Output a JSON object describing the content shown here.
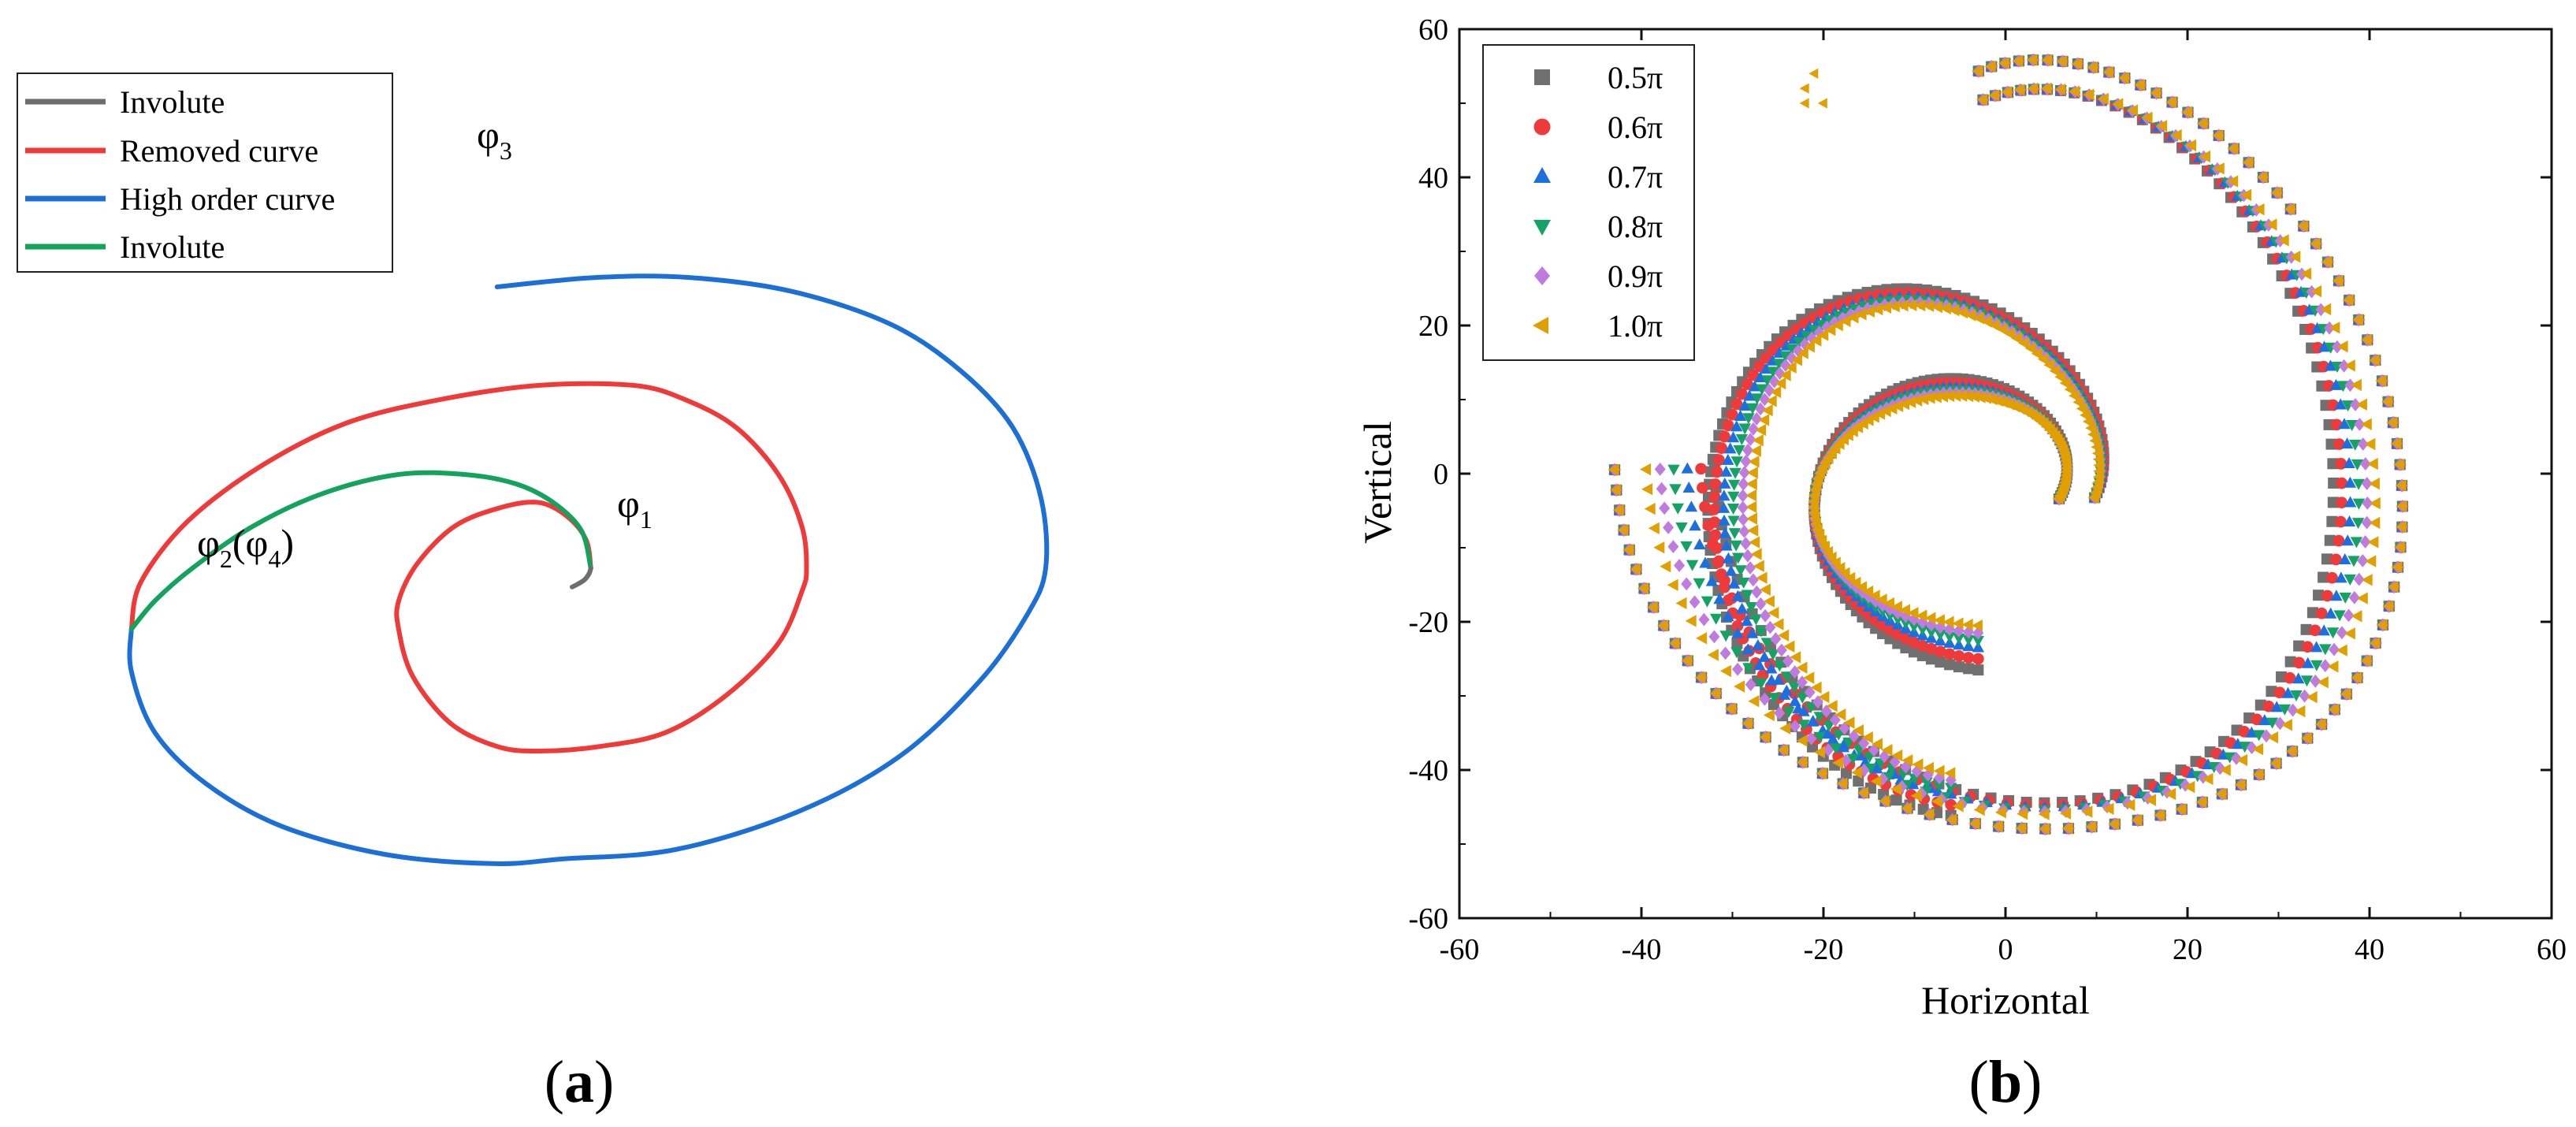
{
  "chart_data": [
    {
      "panel": "a",
      "type": "line",
      "panel_label_open": "(",
      "panel_label_letter": "a",
      "panel_label_close": ")",
      "legend": {
        "placement": "top-left",
        "entries": [
          {
            "name": "Involute",
            "color": "#6e6e6e"
          },
          {
            "name": "Removed curve",
            "color": "#f03a3a"
          },
          {
            "name": "High order curve",
            "color": "#1c6fd6"
          },
          {
            "name": "Involute",
            "color": "#14a35c"
          }
        ]
      },
      "annotations": [
        {
          "symbol": "φ",
          "subscript": "3",
          "suffix": ""
        },
        {
          "symbol": "φ",
          "subscript": "1",
          "suffix": ""
        },
        {
          "symbol": "φ",
          "subscript": "2",
          "suffix": "(φ",
          "subscript2": "4",
          "suffix2": ")"
        }
      ],
      "curves": [
        {
          "name": "Involute",
          "color": "#6e6e6e",
          "segment": "start",
          "x": [
            0,
            1,
            3,
            4
          ],
          "y": [
            -4,
            -3,
            -2,
            0
          ]
        },
        {
          "name": "Removed curve",
          "color": "#f03a3a",
          "segment": "inner and outer spiral",
          "x": [
            4,
            -7,
            -37,
            -7,
            50,
            -7,
            -94
          ],
          "y": [
            0,
            14,
            -13,
            -39,
            0,
            39,
            -13
          ]
        },
        {
          "name": "High order curve",
          "color": "#1c6fd6",
          "segment": "outer wrap",
          "x": [
            -94,
            -2,
            101,
            -16
          ],
          "y": [
            -13,
            -62,
            0,
            60
          ]
        },
        {
          "name": "Involute",
          "color": "#14a35c",
          "segment": "inner bridge",
          "x": [
            4,
            -43,
            -94
          ],
          "y": [
            0,
            20,
            -13
          ]
        }
      ]
    },
    {
      "panel": "b",
      "type": "scatter",
      "panel_label_open": "(",
      "panel_label_letter": "b",
      "panel_label_close": ")",
      "xlabel": "Horizontal",
      "ylabel": "Vertical",
      "xlim": [
        -60,
        60
      ],
      "ylim": [
        -60,
        60
      ],
      "xticks": [
        -60,
        -40,
        -20,
        0,
        20,
        40,
        60
      ],
      "yticks": [
        -60,
        -40,
        -20,
        0,
        20,
        40,
        60
      ],
      "grid": false,
      "legend": {
        "placement": "top-left",
        "entries": [
          {
            "name": "0.5π",
            "color": "#707070",
            "marker": "square"
          },
          {
            "name": "0.6π",
            "color": "#ee3a3a",
            "marker": "circle"
          },
          {
            "name": "0.7π",
            "color": "#1d6fe0",
            "marker": "triangle-up"
          },
          {
            "name": "0.8π",
            "color": "#15a365",
            "marker": "triangle-down"
          },
          {
            "name": "0.9π",
            "color": "#c07be0",
            "marker": "diamond"
          },
          {
            "name": "1.0π",
            "color": "#e0a000",
            "marker": "triangle-left"
          }
        ]
      },
      "series": [
        {
          "name": "0.5π",
          "inner_ry": 25.5,
          "inner_rx": 35.5
        },
        {
          "name": "0.6π",
          "inner_ry": 24.0,
          "inner_rx": 34.5
        },
        {
          "name": "0.7π",
          "inner_ry": 22.5,
          "inner_rx": 33.0
        },
        {
          "name": "0.8π",
          "inner_ry": 21.5,
          "inner_rx": 31.5
        },
        {
          "name": "0.9π",
          "inner_ry": 20.5,
          "inner_rx": 30.0
        },
        {
          "name": "1.0π",
          "inner_ry": 19.5,
          "inner_rx": 28.5
        }
      ]
    }
  ]
}
